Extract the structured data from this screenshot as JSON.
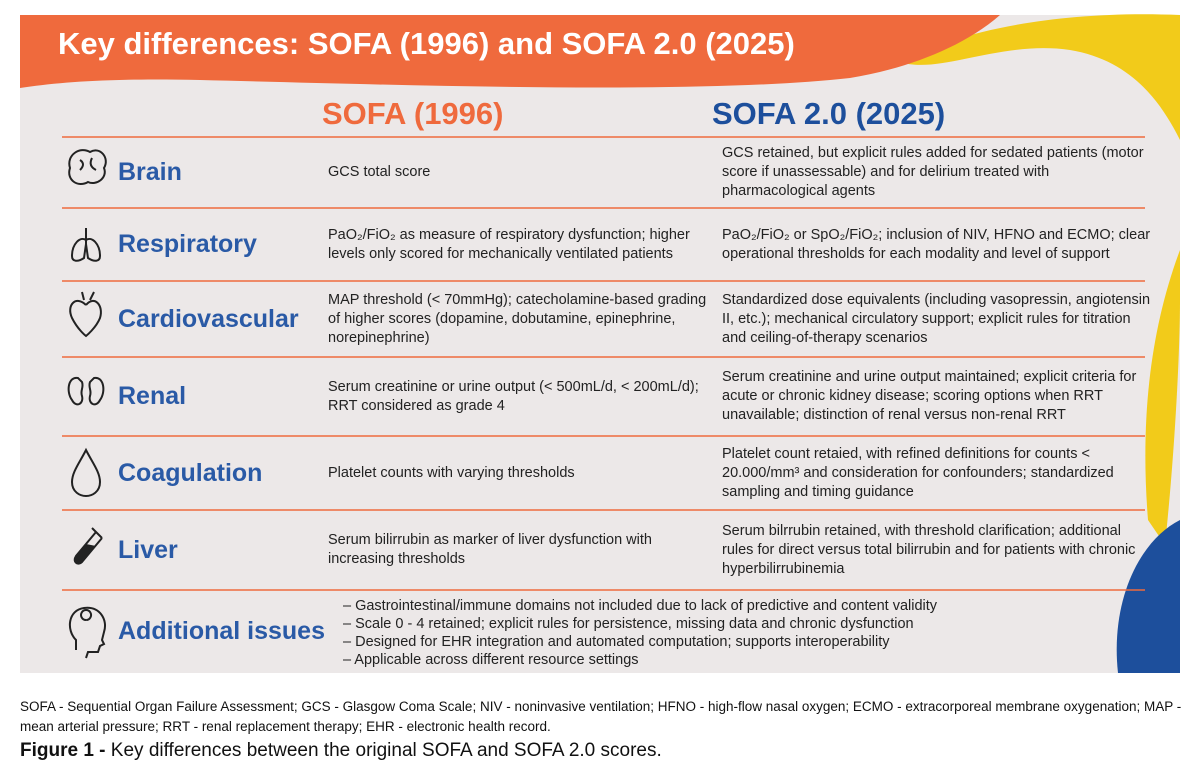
{
  "header": {
    "title": "Key differences: SOFA (1996) and SOFA 2.0 (2025)"
  },
  "columns": [
    "SOFA (1996)",
    "SOFA 2.0 (2025)"
  ],
  "rows": [
    {
      "domain": "Brain",
      "sofa_1996": "GCS total score",
      "sofa_2": "GCS retained, but explicit rules added for sedated patients (motor score if unassessable) and for delirium treated with pharmacological agents"
    },
    {
      "domain": "Respiratory",
      "sofa_1996": "PaO₂/FiO₂ as measure of respiratory dysfunction; higher levels only scored for mechanically ventilated patients",
      "sofa_2": "PaO₂/FiO₂ or SpO₂/FiO₂; inclusion of NIV, HFNO and ECMO; clear operational thresholds for each modality and level of support"
    },
    {
      "domain": "Cardiovascular",
      "sofa_1996": "MAP threshold (< 70mmHg); catecholamine-based grading of higher scores (dopamine, dobutamine, epinephrine, norepinephrine)",
      "sofa_2": "Standardized dose equivalents (including vasopressin, angiotensin II, etc.); mechanical circulatory support; explicit rules for titration and ceiling-of-therapy scenarios"
    },
    {
      "domain": "Renal",
      "sofa_1996": "Serum creatinine or urine output (< 500mL/d, < 200mL/d); RRT considered as grade 4",
      "sofa_2": "Serum creatinine and urine output maintained; explicit criteria for acute or chronic kidney disease; scoring options when RRT unavailable; distinction of renal versus non-renal RRT"
    },
    {
      "domain": "Coagulation",
      "sofa_1996": "Platelet counts with varying thresholds",
      "sofa_2": "Platelet count retaied, with refined definitions for counts < 20.000/mm³ and consideration for confounders; standardized sampling and timing guidance"
    },
    {
      "domain": "Liver",
      "sofa_1996": "Serum bilirrubin as marker of liver dysfunction with increasing thresholds",
      "sofa_2": "Serum bilrrubin retained, with threshold clarification; additional rules for direct versus total bilirrubin and for patients with chronic hyperbilirrubinemia"
    }
  ],
  "additional_issues": {
    "domain": "Additional issues",
    "items": [
      "– Gastrointestinal/immune domains not included due to lack of predictive and content validity",
      "– Scale 0 - 4 retained; explicit rules for persistence, missing data and chronic dysfunction",
      "– Designed for EHR integration and automated computation; supports interoperability",
      "– Applicable across different resource settings"
    ]
  },
  "footnote": "SOFA - Sequential Organ Failure Assessment; GCS - Glasgow Coma Scale; NIV - noninvasive ventilation; HFNO - high-flow nasal oxygen; ECMO - extracorporeal membrane oxygenation; MAP - mean arterial pressure; RRT - renal replacement therapy; EHR - electronic health record.",
  "caption": {
    "label": "Figure 1 -",
    "text": "Key differences between the original SOFA and SOFA 2.0 scores."
  }
}
